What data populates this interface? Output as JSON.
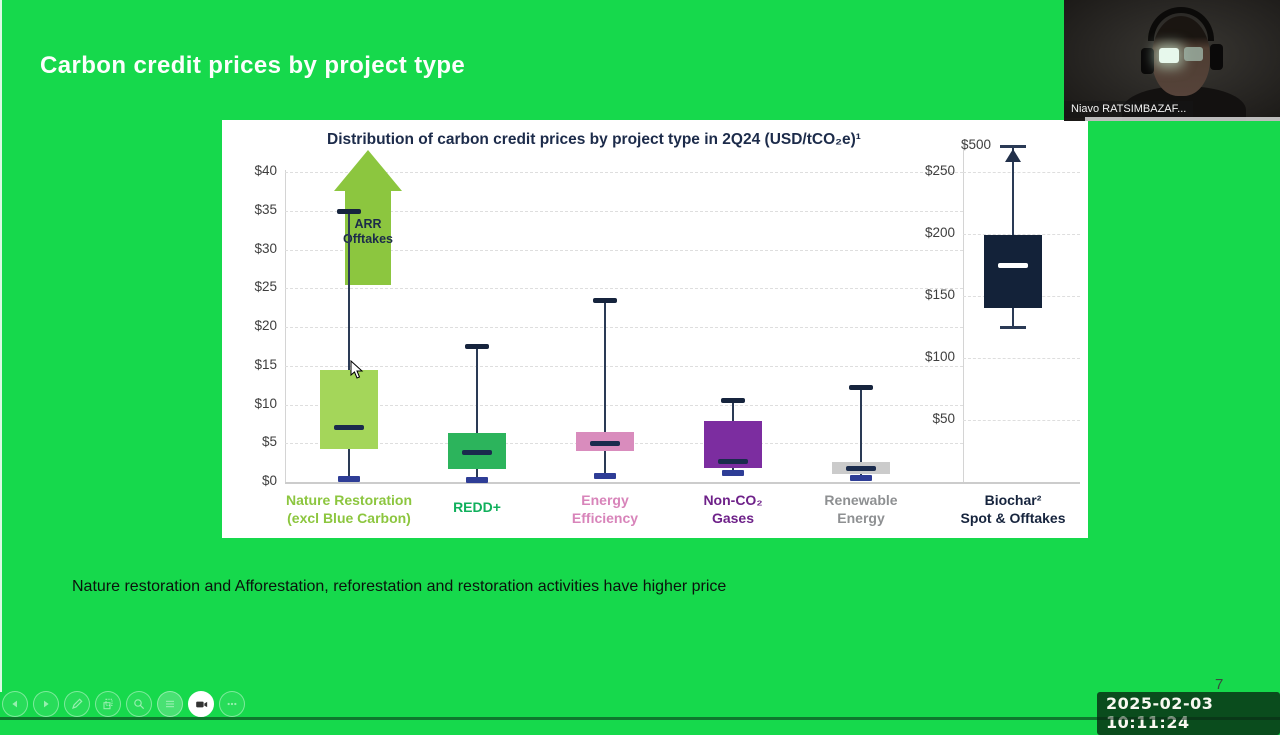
{
  "window": {
    "participant_name": "Niavo RATSIMBAZAF...",
    "timestamp": "2025-02-03 10:11:24",
    "page_number": "7"
  },
  "slide": {
    "title": "Carbon credit prices by project type",
    "note": "Nature restoration and Afforestation, reforestation and restoration activities have higher price",
    "background_color": "#16d94c"
  },
  "toolbar": {
    "icons": [
      "previous",
      "next",
      "pen",
      "pages",
      "magnifier",
      "notes",
      "camera",
      "more"
    ],
    "active": "camera"
  },
  "chart_data": {
    "type": "boxplot",
    "title": "Distribution of carbon credit prices by project type in 2Q24 (USD/tCO₂e)¹",
    "left_axis": {
      "ticks": [
        0,
        5,
        10,
        15,
        20,
        25,
        30,
        35,
        40
      ],
      "tick_labels": [
        "$0",
        "$5",
        "$10",
        "$15",
        "$20",
        "$25",
        "$30",
        "$35",
        "$40"
      ]
    },
    "right_axis": {
      "ticks": [
        50,
        100,
        150,
        200,
        250
      ],
      "tick_labels": [
        "$50",
        "$100",
        "$150",
        "$200",
        "$250"
      ],
      "overflow_label": "$500"
    },
    "annotation": {
      "lines": [
        "ARR",
        "Offtakes"
      ],
      "color": "#8cc63f",
      "text_color": "#1c2b4a"
    },
    "series": [
      {
        "label_lines": [
          "Nature Restoration",
          "(excl Blue Carbon)"
        ],
        "axis": "left",
        "box_color": "#a4d65a",
        "label_color": "#8cc63f",
        "min": 0.4,
        "q1": 4.2,
        "median": 7,
        "q3": 14.5,
        "max": 35
      },
      {
        "label_lines": [
          "REDD+"
        ],
        "axis": "left",
        "box_color": "#2cb45c",
        "label_color": "#10b05c",
        "min": 0.3,
        "q1": 1.7,
        "median": 3.8,
        "q3": 6.3,
        "max": 17.5
      },
      {
        "label_lines": [
          "Energy",
          "Efficiency"
        ],
        "axis": "left",
        "box_color": "#d98cbd",
        "label_color": "#d884ba",
        "min": 0.8,
        "q1": 4.0,
        "median": 5.0,
        "q3": 6.4,
        "max": 23.5
      },
      {
        "label_lines": [
          "Non-CO₂",
          "Gases"
        ],
        "axis": "left",
        "box_color": "#7c2da0",
        "label_color": "#6e2189",
        "min": 1.2,
        "q1": 1.8,
        "median": 2.7,
        "q3": 7.9,
        "max": 10.6
      },
      {
        "label_lines": [
          "Renewable",
          "Energy"
        ],
        "axis": "left",
        "box_color": "#cbcbcb",
        "label_color": "#8e9092",
        "min": 0.5,
        "q1": 1.0,
        "median": 1.7,
        "q3": 2.6,
        "max": 12.3
      },
      {
        "label_lines": [
          "Biochar²",
          "Spot & Offtakes"
        ],
        "axis": "right",
        "box_color": "#132239",
        "label_color": "#16243d",
        "median_color": "#ffffff",
        "min": 125,
        "q1": 140,
        "median": 175,
        "q3": 199,
        "max": 500,
        "max_overflow": true
      }
    ]
  }
}
